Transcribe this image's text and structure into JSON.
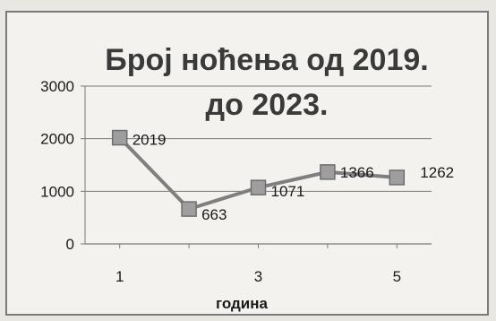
{
  "chart_data": {
    "type": "line",
    "title_line1": "Број ноћења од 2019.",
    "title_line2": "до 2023.",
    "xlabel": "година",
    "ylabel": "",
    "x": [
      1,
      2,
      3,
      4,
      5
    ],
    "x_ticks": [
      "1",
      "3",
      "5"
    ],
    "y_ticks": [
      "0",
      "1000",
      "2000",
      "3000"
    ],
    "ylim": [
      0,
      3000
    ],
    "xlim": [
      0.5,
      5.5
    ],
    "grid": true,
    "legend": "none",
    "series": [
      {
        "values": [
          2019,
          663,
          1071,
          1366,
          1262
        ],
        "data_labels": [
          "2019",
          "663",
          "1071",
          "1366",
          "1262"
        ]
      }
    ]
  },
  "colors": {
    "line": "#7f7f7f",
    "marker_fill": "#9e9e9e",
    "marker_stroke": "#6e6e6e",
    "grid": "#7a7a7a"
  }
}
